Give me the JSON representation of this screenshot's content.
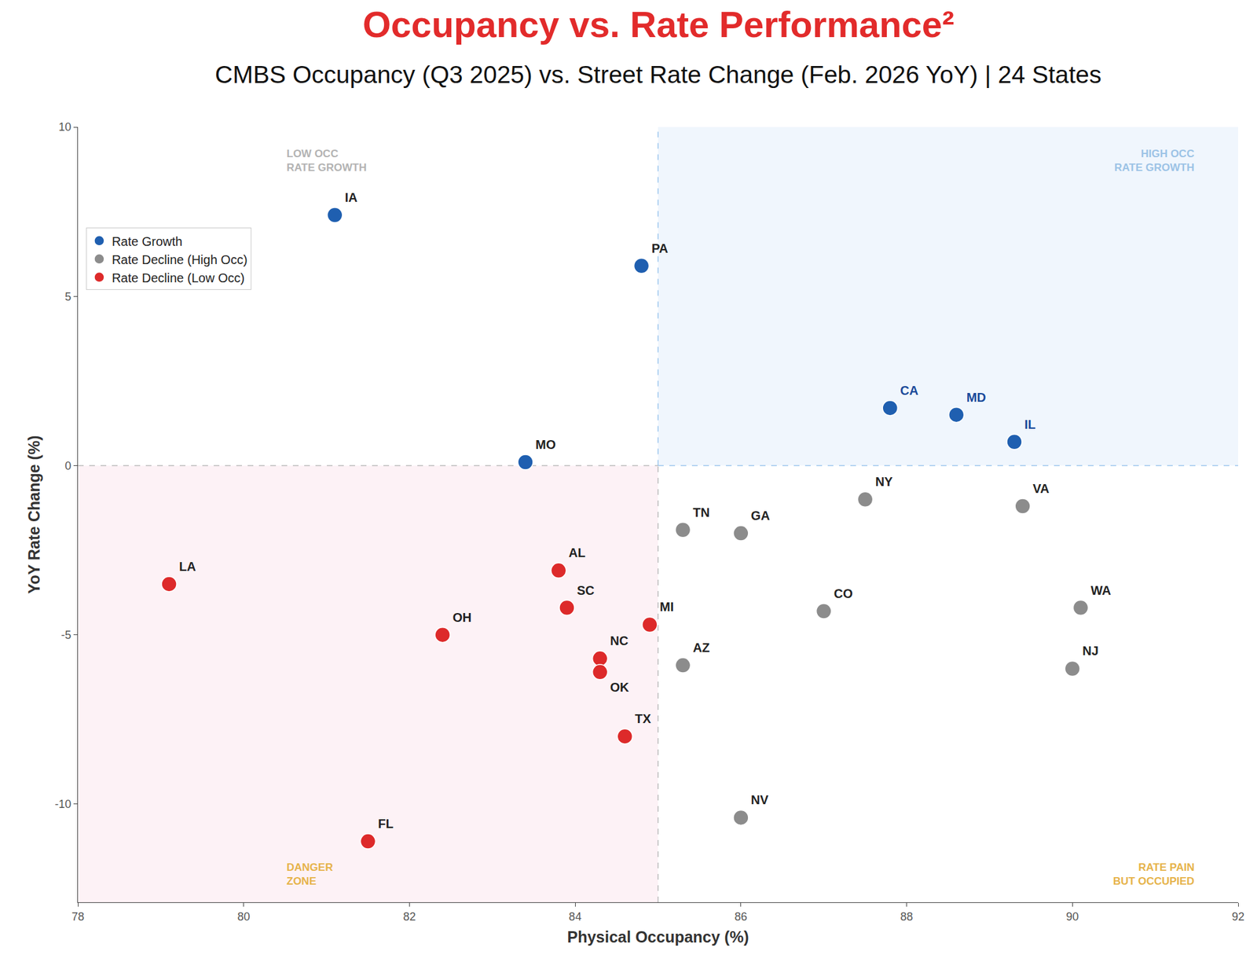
{
  "chart_data": {
    "type": "scatter",
    "title": "Occupancy vs. Rate Performance²",
    "subtitle": "CMBS Occupancy (Q3 2025) vs. Street Rate Change (Feb. 2026 YoY) | 24 States",
    "x_label": "Physical Occupancy (%)",
    "y_label": "YoY Rate Change (%)",
    "xlim": [
      78,
      92
    ],
    "ylim": [
      -12.9,
      10
    ],
    "xticks": [
      78,
      80,
      82,
      84,
      86,
      88,
      90,
      92
    ],
    "yticks": [
      -10,
      -5,
      0,
      5,
      10
    ],
    "grid": false,
    "legend": "upper left",
    "thresholds": {
      "x": 85,
      "y": 0
    },
    "quadrant_labels": {
      "top_left": [
        "LOW OCC",
        "RATE GROWTH"
      ],
      "top_right": [
        "HIGH OCC",
        "RATE GROWTH"
      ],
      "bottom_left": [
        "DANGER",
        "ZONE"
      ],
      "bottom_right": [
        "RATE PAIN",
        "BUT OCCUPIED"
      ]
    },
    "series": [
      {
        "name": "Rate Growth",
        "color": "#1f5fb0",
        "labels": [
          "IA",
          "PA",
          "MO",
          "CA",
          "MD",
          "IL"
        ],
        "x": [
          81.1,
          84.8,
          83.4,
          87.8,
          88.6,
          89.3
        ],
        "y": [
          7.4,
          5.9,
          0.1,
          1.7,
          1.5,
          0.7
        ]
      },
      {
        "name": "Rate Decline (High Occ)",
        "color": "#8c8c8c",
        "labels": [
          "NY",
          "VA",
          "TN",
          "GA",
          "CO",
          "WA",
          "NJ",
          "AZ",
          "NV"
        ],
        "x": [
          87.5,
          89.4,
          85.3,
          86.0,
          87.0,
          90.1,
          90.0,
          85.3,
          86.0
        ],
        "y": [
          -1.0,
          -1.2,
          -1.9,
          -2.0,
          -4.3,
          -4.2,
          -6.0,
          -5.9,
          -10.4
        ]
      },
      {
        "name": "Rate Decline (Low Occ)",
        "color": "#dd2a2a",
        "labels": [
          "LA",
          "OH",
          "AL",
          "SC",
          "MI",
          "NC",
          "OK",
          "TX",
          "FL"
        ],
        "x": [
          79.1,
          82.4,
          83.8,
          83.9,
          84.9,
          84.3,
          84.3,
          84.6,
          81.5
        ],
        "y": [
          -3.5,
          -5.0,
          -3.1,
          -4.2,
          -4.7,
          -5.7,
          -6.1,
          -8.0,
          -11.1
        ]
      }
    ]
  }
}
